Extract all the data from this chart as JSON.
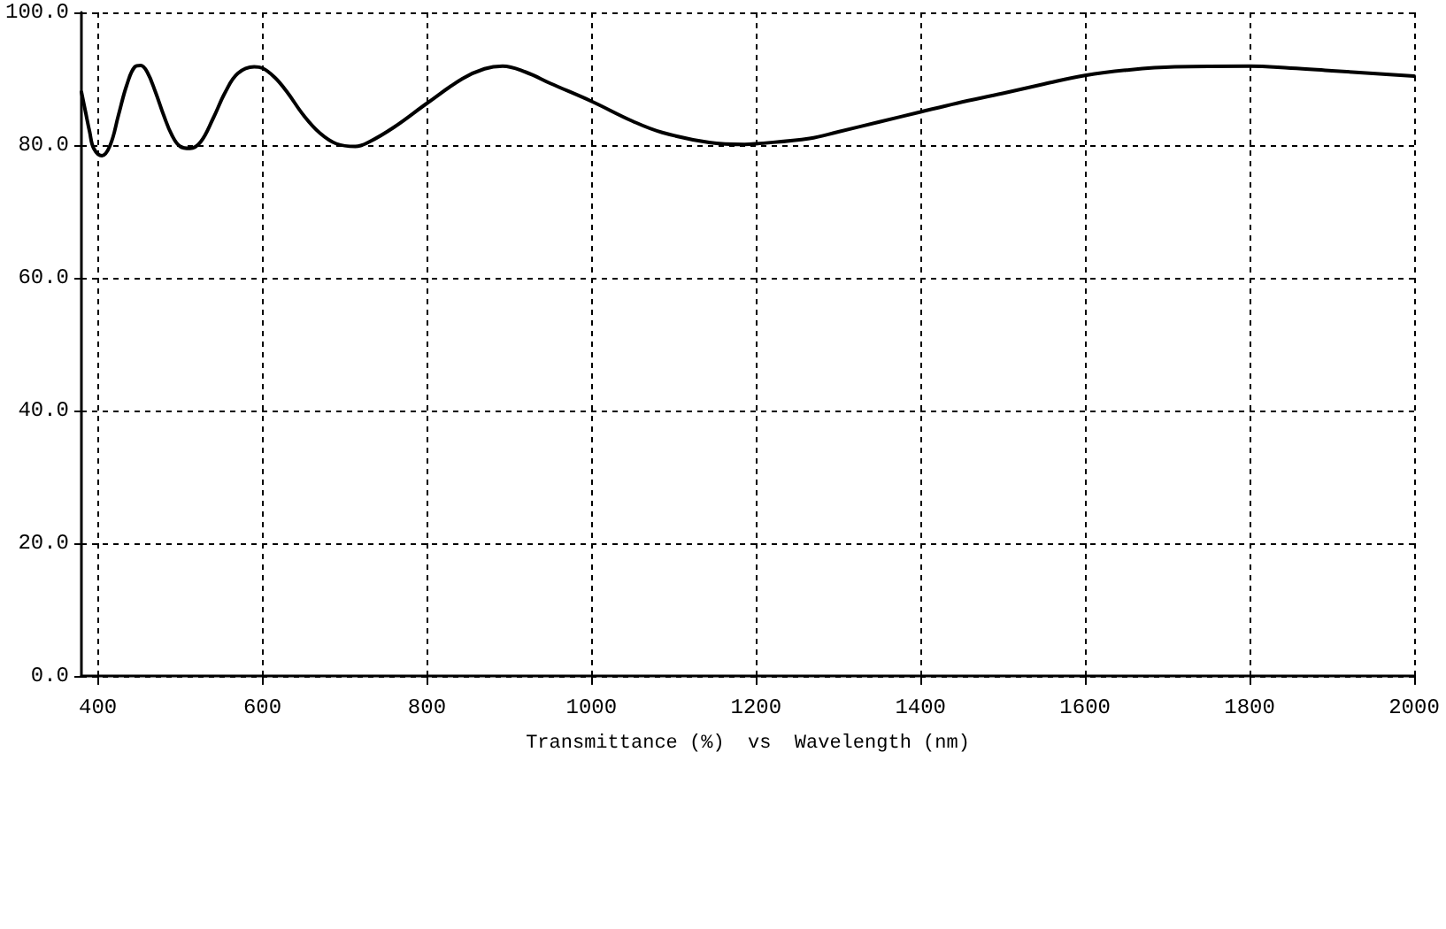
{
  "chart_data": {
    "type": "line",
    "xlabel": "Transmittance (%)  vs  Wavelength (nm)",
    "x": [
      380,
      385,
      390,
      395,
      405,
      415,
      425,
      435,
      445,
      452,
      460,
      470,
      480,
      490,
      500,
      512,
      525,
      540,
      555,
      570,
      590,
      600,
      615,
      630,
      650,
      670,
      690,
      713,
      730,
      760,
      800,
      843,
      870,
      892,
      920,
      950,
      1000,
      1050,
      1086,
      1143,
      1186,
      1200,
      1265,
      1300,
      1350,
      1400,
      1444,
      1500,
      1550,
      1600,
      1650,
      1709,
      1800,
      1850,
      1900,
      1950,
      2000
    ],
    "values": [
      88.0,
      85.0,
      82.0,
      79.5,
      78.4,
      80.0,
      84.5,
      89.0,
      91.8,
      92.0,
      91.0,
      88.0,
      84.5,
      81.5,
      79.8,
      79.5,
      80.5,
      84.0,
      88.0,
      90.8,
      91.8,
      91.6,
      90.2,
      88.0,
      84.5,
      81.8,
      80.2,
      79.8,
      80.5,
      82.7,
      86.3,
      90.0,
      91.5,
      91.9,
      91.0,
      89.3,
      86.6,
      83.6,
      81.9,
      80.4,
      80.1,
      80.2,
      81.0,
      82.0,
      83.5,
      85.0,
      86.3,
      87.8,
      89.2,
      90.5,
      91.3,
      91.8,
      91.9,
      91.6,
      91.2,
      90.8,
      90.4
    ],
    "color": "#000000",
    "xlim": [
      380,
      2000
    ],
    "xticks": [
      400,
      600,
      800,
      1000,
      1200,
      1400,
      1600,
      1800,
      2000
    ],
    "ylim": [
      0,
      100
    ],
    "yticks": [
      {
        "value": 0,
        "label": "0.0"
      },
      {
        "value": 20,
        "label": "20.0"
      },
      {
        "value": 40,
        "label": "40.0"
      },
      {
        "value": 60,
        "label": "60.0"
      },
      {
        "value": 80,
        "label": "80.0"
      },
      {
        "value": 100,
        "label": "100.0"
      }
    ],
    "grid": true,
    "marker": "none",
    "line_style": "solid"
  }
}
